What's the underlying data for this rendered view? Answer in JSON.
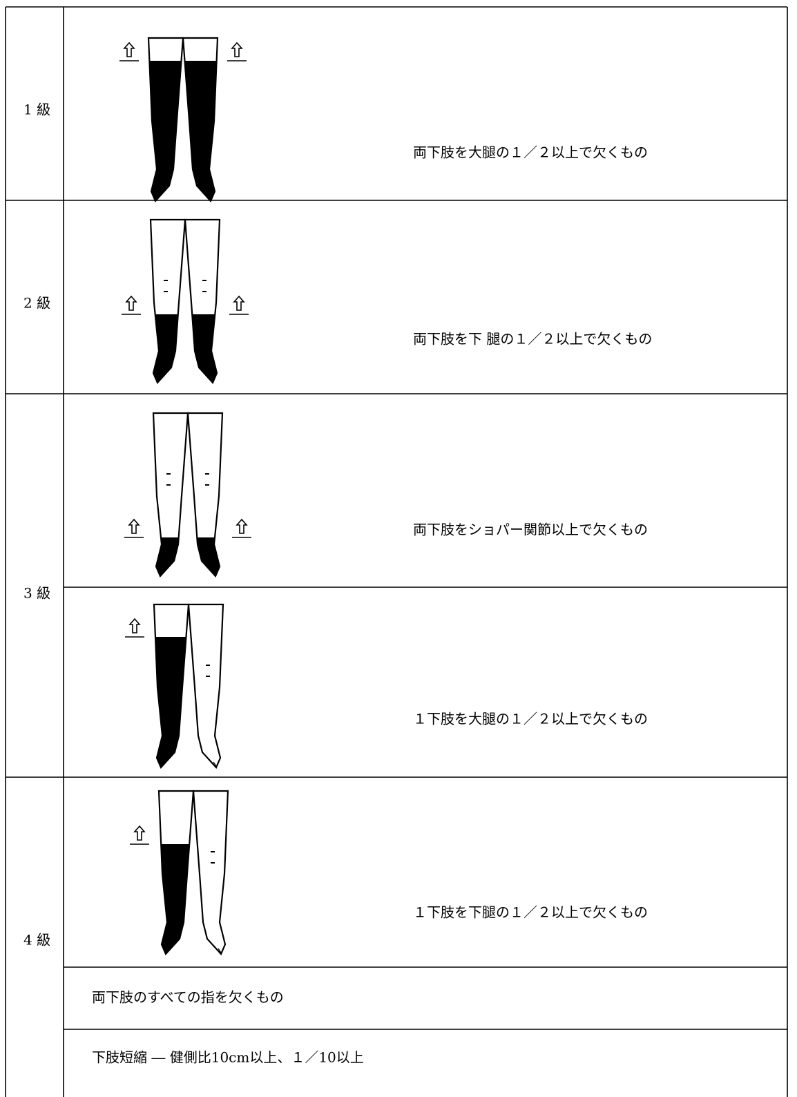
{
  "rows": [
    {
      "grade": "1 級",
      "items": [
        "両下肢を大腿の１／２以上で欠くもの"
      ]
    },
    {
      "grade": "2 級",
      "items": [
        "両下肢を下 腿の１／２以上で欠くもの"
      ]
    },
    {
      "grade": "3 級",
      "items": [
        "両下肢をショパー関節以上で欠くもの",
        "１下肢を大腿の１／２以上で欠くもの"
      ]
    },
    {
      "grade": "4 級",
      "items": [
        "１下肢を下腿の１／２以上で欠くもの",
        "両下肢のすべての指を欠くもの",
        "下肢短縮 ― 健側比10cm以上、１／10以上"
      ]
    }
  ]
}
